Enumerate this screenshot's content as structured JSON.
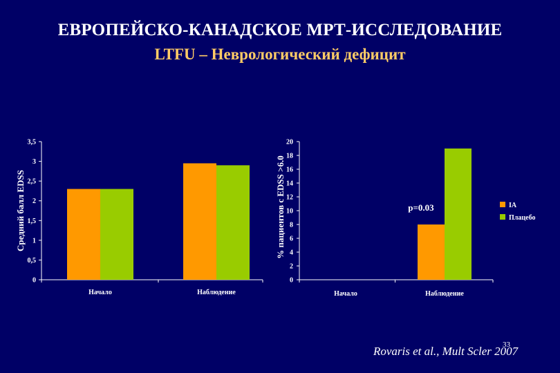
{
  "slide": {
    "title": "ЕВРОПЕЙСКО-КАНАДСКОЕ МРТ-ИССЛЕДОВАНИЕ",
    "subtitle": "LTFU – Неврологический дефицит",
    "citation": "Rovaris et al., Mult Scler 2007",
    "page_number": "33"
  },
  "colors": {
    "background": "#000066",
    "series_1": "#ff9900",
    "series_2": "#99cc00",
    "subtitle": "#ffcc66"
  },
  "chart_data": [
    {
      "type": "bar",
      "ylabel": "Средний балл EDSS",
      "categories": [
        "Начало",
        "Наблюдение"
      ],
      "ylim": [
        0,
        3.5
      ],
      "yticks": [
        "0",
        "0,5",
        "1",
        "1,5",
        "2",
        "2,5",
        "3",
        "3,5"
      ],
      "series": [
        {
          "values": [
            2.3,
            2.95
          ]
        },
        {
          "values": [
            2.3,
            2.9
          ]
        }
      ],
      "grid": false
    },
    {
      "type": "bar",
      "ylabel": "% пациентов с EDSS >6.0",
      "categories": [
        "Начало",
        "Наблюдение"
      ],
      "ylim": [
        0,
        20
      ],
      "yticks": [
        "0",
        "2",
        "4",
        "6",
        "8",
        "10",
        "12",
        "14",
        "16",
        "18",
        "20"
      ],
      "series": [
        {
          "name": "IА",
          "values": [
            0,
            8
          ]
        },
        {
          "name": "Плацебо",
          "values": [
            0,
            19
          ]
        }
      ],
      "annotation": "p=0.03",
      "legend": "right",
      "grid": false
    }
  ]
}
